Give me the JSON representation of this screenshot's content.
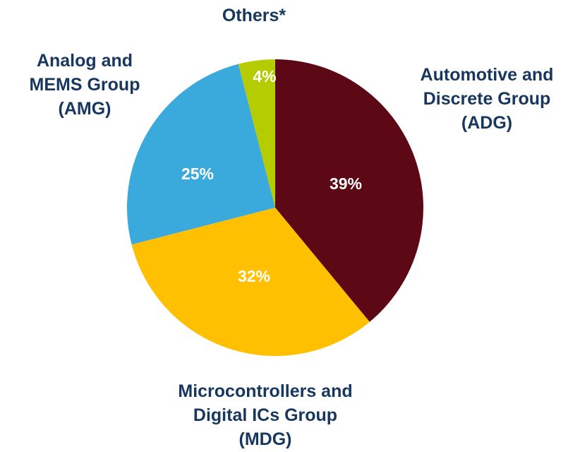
{
  "chart_data": {
    "type": "pie",
    "categories": [
      "Automotive and\nDiscrete Group\n(ADG)",
      "Microcontrollers and\nDigital ICs Group\n(MDG)",
      "Analog and\nMEMS Group\n(AMG)",
      "Others*"
    ],
    "values": [
      39,
      32,
      25,
      4
    ],
    "value_labels": [
      "39%",
      "32%",
      "25%",
      "4%"
    ],
    "colors": [
      "#5c0915",
      "#fec000",
      "#3aa9dc",
      "#b5cc00"
    ]
  }
}
